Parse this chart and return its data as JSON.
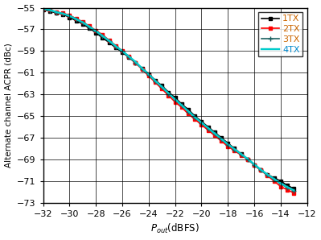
{
  "title": "",
  "xlabel": "$P_{out}$(dBFS)",
  "ylabel": "Alternate channel ACPR (dBc)",
  "xlim": [
    -32,
    -12
  ],
  "ylim": [
    -73,
    -55
  ],
  "xticks": [
    -32,
    -30,
    -28,
    -26,
    -24,
    -22,
    -20,
    -18,
    -16,
    -14,
    -12
  ],
  "yticks": [
    -73,
    -71,
    -69,
    -67,
    -65,
    -63,
    -61,
    -59,
    -57,
    -55
  ],
  "x": [
    -32,
    -31.5,
    -31,
    -30.5,
    -30,
    -29.5,
    -29,
    -28.5,
    -28,
    -27.5,
    -27,
    -26.5,
    -26,
    -25.5,
    -25,
    -24.5,
    -24,
    -23.5,
    -23,
    -22.5,
    -22,
    -21.5,
    -21,
    -20.5,
    -20,
    -19.5,
    -19,
    -18.5,
    -18,
    -17.5,
    -17,
    -16.5,
    -16,
    -15.5,
    -15,
    -14.5,
    -14,
    -13.5,
    -13
  ],
  "y_1tx": [
    -55.2,
    -55.3,
    -55.5,
    -55.6,
    -55.9,
    -56.2,
    -56.5,
    -56.9,
    -57.3,
    -57.8,
    -58.2,
    -58.7,
    -59.1,
    -59.6,
    -60.1,
    -60.6,
    -61.1,
    -61.7,
    -62.2,
    -62.8,
    -63.3,
    -63.9,
    -64.4,
    -65.0,
    -65.5,
    -66.0,
    -66.5,
    -67.0,
    -67.5,
    -68.0,
    -68.5,
    -69.0,
    -69.5,
    -70.0,
    -70.4,
    -70.7,
    -71.0,
    -71.4,
    -71.7
  ],
  "y_2tx": [
    -55.1,
    -55.2,
    -55.4,
    -55.5,
    -55.7,
    -56.0,
    -56.3,
    -56.7,
    -57.1,
    -57.5,
    -58.0,
    -58.5,
    -59.0,
    -59.5,
    -60.1,
    -60.7,
    -61.3,
    -61.9,
    -62.5,
    -63.1,
    -63.7,
    -64.2,
    -64.8,
    -65.3,
    -65.8,
    -66.3,
    -66.8,
    -67.3,
    -67.8,
    -68.2,
    -68.6,
    -69.0,
    -69.5,
    -70.0,
    -70.5,
    -71.0,
    -71.5,
    -71.8,
    -72.1
  ],
  "y_3tx": [
    -55.15,
    -55.25,
    -55.45,
    -55.55,
    -55.8,
    -56.1,
    -56.4,
    -56.8,
    -57.2,
    -57.65,
    -58.1,
    -58.6,
    -59.05,
    -59.55,
    -60.05,
    -60.65,
    -61.2,
    -61.8,
    -62.35,
    -62.95,
    -63.5,
    -64.05,
    -64.6,
    -65.15,
    -65.65,
    -66.15,
    -66.65,
    -67.15,
    -67.65,
    -68.1,
    -68.55,
    -69.0,
    -69.5,
    -70.0,
    -70.45,
    -70.85,
    -71.25,
    -71.6,
    -71.9
  ],
  "y_4tx": [
    -55.1,
    -55.2,
    -55.4,
    -55.55,
    -55.75,
    -56.05,
    -56.35,
    -56.75,
    -57.15,
    -57.6,
    -58.05,
    -58.55,
    -59.0,
    -59.5,
    -60.0,
    -60.6,
    -61.15,
    -61.75,
    -62.3,
    -62.9,
    -63.45,
    -64.0,
    -64.55,
    -65.1,
    -65.6,
    -66.1,
    -66.6,
    -67.1,
    -67.6,
    -68.05,
    -68.5,
    -68.95,
    -69.45,
    -69.95,
    -70.4,
    -70.8,
    -71.2,
    -71.55,
    -71.85
  ],
  "colors": [
    "#000000",
    "#ff0000",
    "#1a5276",
    "#00ccdd"
  ],
  "legend_label_colors": [
    "#ff8c00",
    "#ff8c00",
    "#ff8c00",
    "#00aadd"
  ],
  "legend_labels": [
    "1TX",
    "2TX",
    "3TX",
    "4TX"
  ],
  "marker": "s",
  "marker_size": 4,
  "linewidth": 1.2,
  "grid_color": "#000000",
  "bg_color": "#ffffff"
}
